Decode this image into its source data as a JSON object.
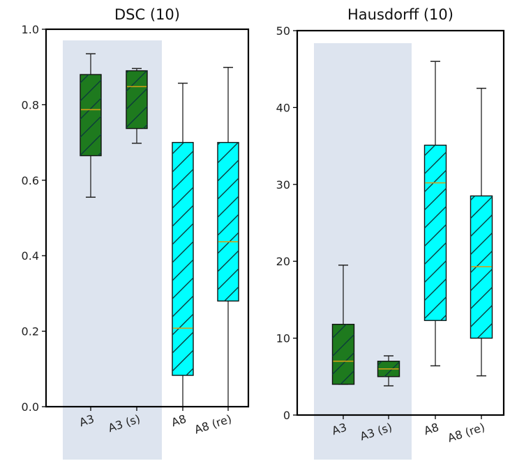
{
  "chart_data": [
    {
      "type": "box",
      "title": "DSC (10)",
      "categories": [
        "A3",
        "A3 (s)",
        "A8",
        "A8 (re)"
      ],
      "ylim": [
        0,
        1.0
      ],
      "yticks": [
        "0.0",
        "0.2",
        "0.4",
        "0.6",
        "0.8",
        "1.0"
      ],
      "ytick_values": [
        0,
        0.2,
        0.4,
        0.6,
        0.8,
        1.0
      ],
      "boxes": [
        {
          "category": "A3",
          "whisker_low": 0.555,
          "q1": 0.665,
          "median": 0.787,
          "q3": 0.88,
          "whisker_high": 0.935,
          "color": "#1e7a1e"
        },
        {
          "category": "A3 (s)",
          "whisker_low": 0.698,
          "q1": 0.737,
          "median": 0.848,
          "q3": 0.89,
          "whisker_high": 0.896,
          "color": "#1e7a1e"
        },
        {
          "category": "A8",
          "whisker_low": 0.0,
          "q1": 0.083,
          "median": 0.208,
          "q3": 0.7,
          "whisker_high": 0.857,
          "color": "#00ffff"
        },
        {
          "category": "A8 (re)",
          "whisker_low": 0.0,
          "q1": 0.28,
          "median": 0.437,
          "q3": 0.7,
          "whisker_high": 0.899,
          "color": "#00ffff"
        }
      ],
      "highlight_categories": [
        "A3",
        "A3 (s)"
      ],
      "highlight_color": "#dde4ef",
      "median_color": "#d4a017",
      "grid": false
    },
    {
      "type": "box",
      "title": "Hausdorff (10)",
      "categories": [
        "A3",
        "A3 (s)",
        "A8",
        "A8 (re)"
      ],
      "ylim": [
        0,
        50
      ],
      "yticks": [
        "0",
        "10",
        "20",
        "30",
        "40",
        "50"
      ],
      "ytick_values": [
        0,
        10,
        20,
        30,
        40,
        50
      ],
      "boxes": [
        {
          "category": "A3",
          "whisker_low": 4.0,
          "q1": 4.0,
          "median": 7.0,
          "q3": 11.8,
          "whisker_high": 19.5,
          "color": "#1e7a1e"
        },
        {
          "category": "A3 (s)",
          "whisker_low": 3.8,
          "q1": 5.0,
          "median": 6.0,
          "q3": 7.0,
          "whisker_high": 7.7,
          "color": "#1e7a1e"
        },
        {
          "category": "A8",
          "whisker_low": 6.4,
          "q1": 12.3,
          "median": 30.2,
          "q3": 35.1,
          "whisker_high": 46.0,
          "color": "#00ffff"
        },
        {
          "category": "A8 (re)",
          "whisker_low": 5.1,
          "q1": 10.0,
          "median": 19.3,
          "q3": 28.5,
          "whisker_high": 42.5,
          "color": "#00ffff"
        }
      ],
      "highlight_categories": [
        "A3",
        "A3 (s)"
      ],
      "highlight_color": "#dde4ef",
      "median_color": "#d4a017",
      "grid": false
    }
  ]
}
